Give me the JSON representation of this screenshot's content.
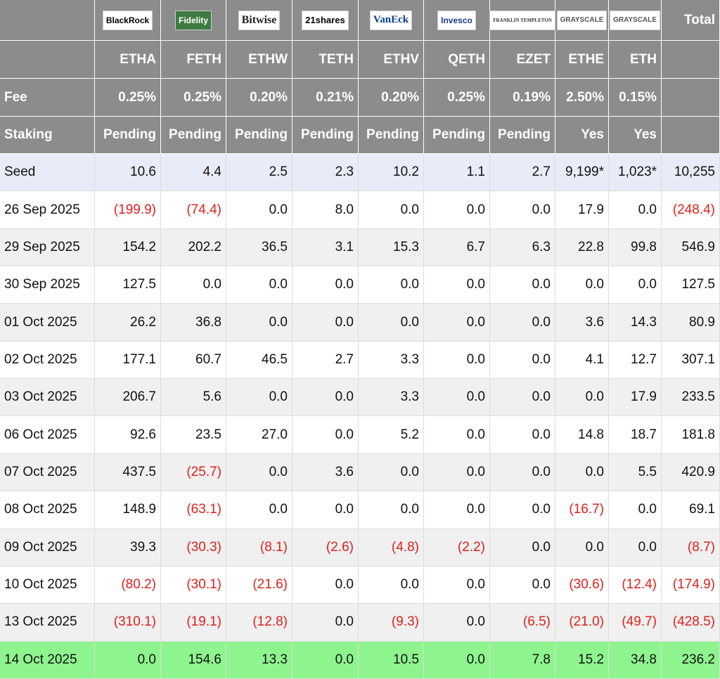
{
  "table": {
    "logos": [
      "BlackRock",
      "Fidelity",
      "Bitwise",
      "21shares",
      "VanEck",
      "Invesco",
      "FRANKLIN TEMPLETON",
      "GRAYSCALE",
      "GRAYSCALE"
    ],
    "total_label": "Total",
    "tickers": [
      "ETHA",
      "FETH",
      "ETHW",
      "TETH",
      "ETHV",
      "QETH",
      "EZET",
      "ETHE",
      "ETH"
    ],
    "fee": {
      "label": "Fee",
      "values": [
        "0.25%",
        "0.25%",
        "0.20%",
        "0.21%",
        "0.20%",
        "0.25%",
        "0.19%",
        "2.50%",
        "0.15%"
      ]
    },
    "staking": {
      "label": "Staking",
      "values": [
        "Pending",
        "Pending",
        "Pending",
        "Pending",
        "Pending",
        "Pending",
        "Pending",
        "Yes",
        "Yes"
      ]
    },
    "rows": [
      [
        "Seed",
        "10.6",
        "4.4",
        "2.5",
        "2.3",
        "10.2",
        "1.1",
        "2.7",
        "9,199*",
        "1,023*",
        "10,255"
      ],
      [
        "26 Sep 2025",
        "(199.9)",
        "(74.4)",
        "0.0",
        "8.0",
        "0.0",
        "0.0",
        "0.0",
        "17.9",
        "0.0",
        "(248.4)"
      ],
      [
        "29 Sep 2025",
        "154.2",
        "202.2",
        "36.5",
        "3.1",
        "15.3",
        "6.7",
        "6.3",
        "22.8",
        "99.8",
        "546.9"
      ],
      [
        "30 Sep 2025",
        "127.5",
        "0.0",
        "0.0",
        "0.0",
        "0.0",
        "0.0",
        "0.0",
        "0.0",
        "0.0",
        "127.5"
      ],
      [
        "01 Oct 2025",
        "26.2",
        "36.8",
        "0.0",
        "0.0",
        "0.0",
        "0.0",
        "0.0",
        "3.6",
        "14.3",
        "80.9"
      ],
      [
        "02 Oct 2025",
        "177.1",
        "60.7",
        "46.5",
        "2.7",
        "3.3",
        "0.0",
        "0.0",
        "4.1",
        "12.7",
        "307.1"
      ],
      [
        "03 Oct 2025",
        "206.7",
        "5.6",
        "0.0",
        "0.0",
        "3.3",
        "0.0",
        "0.0",
        "0.0",
        "17.9",
        "233.5"
      ],
      [
        "06 Oct 2025",
        "92.6",
        "23.5",
        "27.0",
        "0.0",
        "5.2",
        "0.0",
        "0.0",
        "14.8",
        "18.7",
        "181.8"
      ],
      [
        "07 Oct 2025",
        "437.5",
        "(25.7)",
        "0.0",
        "3.6",
        "0.0",
        "0.0",
        "0.0",
        "0.0",
        "5.5",
        "420.9"
      ],
      [
        "08 Oct 2025",
        "148.9",
        "(63.1)",
        "0.0",
        "0.0",
        "0.0",
        "0.0",
        "0.0",
        "(16.7)",
        "0.0",
        "69.1"
      ],
      [
        "09 Oct 2025",
        "39.3",
        "(30.3)",
        "(8.1)",
        "(2.6)",
        "(4.8)",
        "(2.2)",
        "0.0",
        "0.0",
        "0.0",
        "(8.7)"
      ],
      [
        "10 Oct 2025",
        "(80.2)",
        "(30.1)",
        "(21.6)",
        "0.0",
        "0.0",
        "0.0",
        "0.0",
        "(30.6)",
        "(12.4)",
        "(174.9)"
      ],
      [
        "13 Oct 2025",
        "(310.1)",
        "(19.1)",
        "(12.8)",
        "0.0",
        "(9.3)",
        "0.0",
        "(6.5)",
        "(21.0)",
        "(49.7)",
        "(428.5)"
      ],
      [
        "14 Oct 2025",
        "0.0",
        "154.6",
        "13.3",
        "0.0",
        "10.5",
        "0.0",
        "7.8",
        "15.2",
        "34.8",
        "236.2"
      ]
    ]
  }
}
